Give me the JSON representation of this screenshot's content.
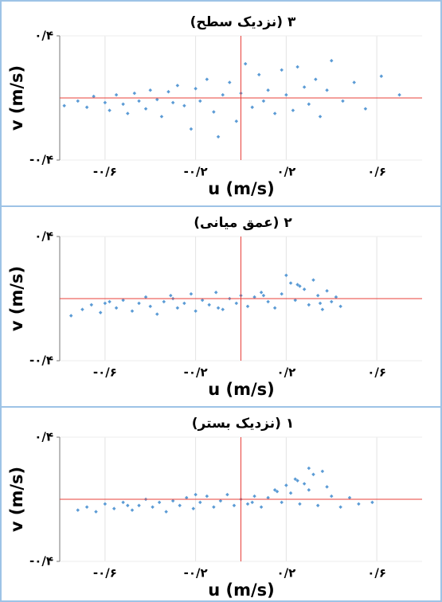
{
  "chart_data": [
    {
      "type": "scatter",
      "title": "۳ (نزدیک سطح)",
      "xlabel": "u (m/s)",
      "ylabel": "v (m/s)",
      "color": "#5b9bd5",
      "x": [
        -0.78,
        -0.72,
        -0.68,
        -0.65,
        -0.6,
        -0.58,
        -0.55,
        -0.52,
        -0.5,
        -0.47,
        -0.45,
        -0.42,
        -0.4,
        -0.37,
        -0.35,
        -0.32,
        -0.3,
        -0.28,
        -0.25,
        -0.22,
        -0.2,
        -0.18,
        -0.15,
        -0.12,
        -0.1,
        -0.08,
        -0.05,
        -0.02,
        0,
        0.02,
        0.05,
        0.08,
        0.1,
        0.12,
        0.15,
        0.18,
        0.2,
        0.23,
        0.25,
        0.28,
        0.3,
        0.33,
        0.35,
        0.38,
        0.4,
        0.45,
        0.5,
        0.55,
        0.62,
        0.7
      ],
      "y": [
        -0.05,
        -0.02,
        -0.06,
        0.01,
        -0.03,
        -0.08,
        0.02,
        -0.04,
        -0.1,
        0.03,
        -0.02,
        -0.07,
        0.05,
        -0.01,
        -0.12,
        0.04,
        -0.03,
        0.08,
        -0.05,
        -0.2,
        0.06,
        -0.02,
        0.12,
        -0.09,
        -0.25,
        0.02,
        0.1,
        -0.15,
        0.03,
        0.22,
        -0.06,
        0.15,
        -0.02,
        0.05,
        -0.1,
        0.18,
        0.02,
        -0.08,
        0.2,
        0.07,
        -0.04,
        0.12,
        -0.12,
        0.05,
        0.24,
        -0.02,
        0.1,
        -0.07,
        0.14,
        0.02
      ],
      "xlim": [
        -0.8,
        0.8
      ],
      "ylim": [
        -0.4,
        0.4
      ],
      "xticks": [
        {
          "value": -0.6,
          "label": "-۰/۶"
        },
        {
          "value": -0.2,
          "label": "-۰/۲"
        },
        {
          "value": 0.2,
          "label": "۰/۲"
        },
        {
          "value": 0.6,
          "label": "۰/۶"
        }
      ],
      "yticks": [
        {
          "value": -0.4,
          "label": "-۰/۴"
        },
        {
          "value": 0.4,
          "label": "۰/۴"
        }
      ],
      "grid": true,
      "reference_lines": [
        {
          "axis": "x",
          "value": 0
        },
        {
          "axis": "y",
          "value": 0
        }
      ],
      "reference_color": "#e8403a"
    },
    {
      "type": "scatter",
      "title": "۲ (عمق میانی)",
      "xlabel": "u (m/s)",
      "ylabel": "v (m/s)",
      "color": "#5b9bd5",
      "x": [
        -0.75,
        -0.7,
        -0.66,
        -0.62,
        -0.58,
        -0.55,
        -0.52,
        -0.48,
        -0.45,
        -0.42,
        -0.4,
        -0.37,
        -0.34,
        -0.31,
        -0.28,
        -0.25,
        -0.22,
        -0.2,
        -0.17,
        -0.14,
        -0.11,
        -0.08,
        -0.05,
        -0.02,
        0,
        0.03,
        0.06,
        0.09,
        0.12,
        0.15,
        0.18,
        0.2,
        0.22,
        0.24,
        0.26,
        0.28,
        0.3,
        0.32,
        0.34,
        0.36,
        0.38,
        0.4,
        0.42,
        0.44,
        -0.6,
        -0.3,
        -0.1,
        0.1,
        0.25,
        0.35
      ],
      "y": [
        -0.11,
        -0.07,
        -0.04,
        -0.09,
        -0.02,
        -0.06,
        -0.01,
        -0.08,
        -0.03,
        0.01,
        -0.05,
        -0.1,
        -0.02,
        0.02,
        -0.06,
        -0.03,
        0.03,
        -0.08,
        -0.01,
        -0.04,
        0.04,
        -0.07,
        0,
        -0.03,
        0.02,
        -0.05,
        0.01,
        0.04,
        -0.02,
        -0.06,
        0.03,
        0.15,
        0.1,
        -0.01,
        0.08,
        0.06,
        -0.04,
        0.12,
        0.02,
        -0.07,
        0.05,
        -0.02,
        0.01,
        -0.05,
        -0.03,
        0,
        -0.06,
        0.02,
        0.09,
        -0.03
      ],
      "xlim": [
        -0.8,
        0.8
      ],
      "ylim": [
        -0.4,
        0.4
      ],
      "xticks": [
        {
          "value": -0.6,
          "label": "-۰/۶"
        },
        {
          "value": -0.2,
          "label": "-۰/۲"
        },
        {
          "value": 0.2,
          "label": "۰/۲"
        },
        {
          "value": 0.6,
          "label": "۰/۶"
        }
      ],
      "yticks": [
        {
          "value": -0.4,
          "label": "-۰/۴"
        },
        {
          "value": 0.4,
          "label": "۰/۴"
        }
      ],
      "grid": true,
      "reference_lines": [
        {
          "axis": "x",
          "value": 0
        },
        {
          "axis": "y",
          "value": 0
        }
      ],
      "reference_color": "#e8403a"
    },
    {
      "type": "scatter",
      "title": "۱ (نزدیک بستر)",
      "xlabel": "u (m/s)",
      "ylabel": "v (m/s)",
      "color": "#5b9bd5",
      "x": [
        -0.72,
        -0.68,
        -0.64,
        -0.6,
        -0.56,
        -0.52,
        -0.48,
        -0.45,
        -0.42,
        -0.39,
        -0.36,
        -0.33,
        -0.3,
        -0.27,
        -0.24,
        -0.21,
        -0.18,
        -0.15,
        -0.12,
        -0.09,
        -0.06,
        -0.03,
        0,
        0.03,
        0.06,
        0.09,
        0.12,
        0.15,
        0.18,
        0.2,
        0.22,
        0.24,
        0.26,
        0.28,
        0.3,
        0.32,
        0.34,
        0.36,
        0.4,
        0.44,
        0.48,
        0.52,
        0.58,
        -0.5,
        -0.2,
        0.05,
        0.16,
        0.25,
        0.38,
        0.3
      ],
      "y": [
        -0.07,
        -0.05,
        -0.08,
        -0.03,
        -0.06,
        -0.02,
        -0.07,
        -0.04,
        0,
        -0.05,
        -0.02,
        -0.08,
        -0.01,
        -0.04,
        0.01,
        -0.06,
        -0.02,
        0.02,
        -0.05,
        -0.01,
        0.03,
        -0.04,
        0,
        -0.03,
        0.02,
        -0.05,
        0.01,
        0.06,
        -0.02,
        0.09,
        0.04,
        0.13,
        -0.03,
        0.1,
        0.06,
        0.16,
        -0.04,
        0.18,
        0.02,
        -0.05,
        0.01,
        -0.03,
        -0.02,
        -0.04,
        0.03,
        -0.02,
        0.05,
        0.12,
        0.08,
        0.2
      ],
      "xlim": [
        -0.8,
        0.8
      ],
      "ylim": [
        -0.4,
        0.4
      ],
      "xticks": [
        {
          "value": -0.6,
          "label": "-۰/۶"
        },
        {
          "value": -0.2,
          "label": "-۰/۲"
        },
        {
          "value": 0.2,
          "label": "۰/۲"
        },
        {
          "value": 0.6,
          "label": "۰/۶"
        }
      ],
      "yticks": [
        {
          "value": -0.4,
          "label": "-۰/۴"
        },
        {
          "value": 0.4,
          "label": "۰/۴"
        }
      ],
      "grid": true,
      "reference_lines": [
        {
          "axis": "x",
          "value": 0
        },
        {
          "axis": "y",
          "value": 0
        }
      ],
      "reference_color": "#e8403a"
    }
  ]
}
